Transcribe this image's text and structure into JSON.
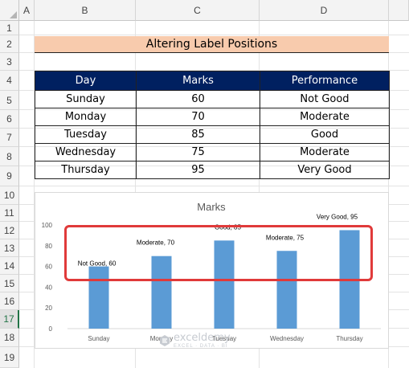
{
  "spreadsheet": {
    "columns": [
      "A",
      "B",
      "C",
      "D"
    ],
    "rows": [
      "1",
      "2",
      "3",
      "4",
      "5",
      "6",
      "7",
      "8",
      "9",
      "10",
      "11",
      "12",
      "13",
      "14",
      "15",
      "16",
      "17",
      "18",
      "19"
    ],
    "selected_row": "17"
  },
  "title": "Altering Label Positions",
  "table": {
    "headers": [
      "Day",
      "Marks",
      "Performance"
    ],
    "rows": [
      [
        "Sunday",
        "60",
        "Not Good"
      ],
      [
        "Monday",
        "70",
        "Moderate"
      ],
      [
        "Tuesday",
        "85",
        "Good"
      ],
      [
        "Wednesday",
        "75",
        "Moderate"
      ],
      [
        "Thursday",
        "95",
        "Very Good"
      ]
    ]
  },
  "chart_data": {
    "type": "bar",
    "title": "Marks",
    "categories": [
      "Sunday",
      "Monday",
      "Tuesday",
      "Wednesday",
      "Thursday"
    ],
    "values": [
      60,
      70,
      85,
      75,
      95
    ],
    "data_labels": [
      "Not Good, 60",
      "Moderate, 70",
      "Good, 85",
      "Moderate, 75",
      "Very Good, 95"
    ],
    "yticks": [
      "0",
      "20",
      "40",
      "60",
      "80",
      "100"
    ],
    "ylim": [
      0,
      100
    ],
    "grid": false,
    "bar_color": "#5b9bd5"
  },
  "watermark": {
    "brand": "exceldemy",
    "tagline": "EXCEL · DATA · BI"
  },
  "colors": {
    "header_fill": "#002060",
    "title_fill": "#f8cbad",
    "highlight_border": "#e03a3a"
  }
}
